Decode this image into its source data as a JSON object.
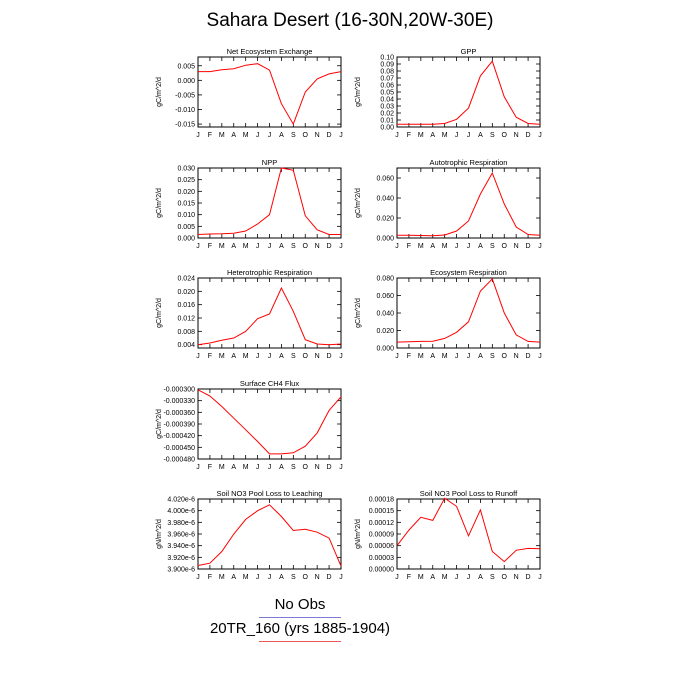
{
  "title": "Sahara Desert (16-30N,20W-30E)",
  "legend": {
    "obs_label": "No Obs",
    "obs_color": "#7b7bd4",
    "model_label": "20TR_160 (yrs 1885-1904)",
    "model_color": "#e85a5a"
  },
  "line_color": "#ff0000",
  "chart_data": [
    {
      "type": "line",
      "title": "Net Ecosystem Exchange",
      "ylabel": "gC/m^2/d",
      "categories": [
        "J",
        "F",
        "M",
        "A",
        "M",
        "J",
        "J",
        "A",
        "S",
        "O",
        "N",
        "D",
        "J"
      ],
      "ylim": [
        -0.016,
        0.008
      ],
      "yticks": [
        "0.005",
        "0.000",
        "-0.005",
        "-0.010",
        "-0.015"
      ],
      "ytick_values": [
        0.005,
        0.0,
        -0.005,
        -0.01,
        -0.015
      ],
      "values": [
        0.003,
        0.003,
        0.0036,
        0.004,
        0.0052,
        0.0057,
        0.0035,
        -0.008,
        -0.015,
        -0.004,
        0.0005,
        0.0022,
        0.003
      ]
    },
    {
      "type": "line",
      "title": "GPP",
      "ylabel": "gC/m^2/d",
      "categories": [
        "J",
        "F",
        "M",
        "A",
        "M",
        "J",
        "J",
        "A",
        "S",
        "O",
        "N",
        "D",
        "J"
      ],
      "ylim": [
        0.0,
        0.1
      ],
      "yticks": [
        "0.10",
        "0.09",
        "0.08",
        "0.07",
        "0.06",
        "0.05",
        "0.04",
        "0.03",
        "0.02",
        "0.01",
        "0.00"
      ],
      "ytick_values": [
        0.1,
        0.09,
        0.08,
        0.07,
        0.06,
        0.05,
        0.04,
        0.03,
        0.02,
        0.01,
        0.0
      ],
      "values": [
        0.004,
        0.004,
        0.0038,
        0.0038,
        0.005,
        0.011,
        0.027,
        0.073,
        0.094,
        0.043,
        0.014,
        0.005,
        0.004
      ]
    },
    {
      "type": "line",
      "title": "NPP",
      "ylabel": "gC/m^2/d",
      "categories": [
        "J",
        "F",
        "M",
        "A",
        "M",
        "J",
        "J",
        "A",
        "S",
        "O",
        "N",
        "D",
        "J"
      ],
      "ylim": [
        0.0,
        0.03
      ],
      "yticks": [
        "0.030",
        "0.025",
        "0.020",
        "0.015",
        "0.010",
        "0.005",
        "0.000"
      ],
      "ytick_values": [
        0.03,
        0.025,
        0.02,
        0.015,
        0.01,
        0.005,
        0.0
      ],
      "values": [
        0.0015,
        0.0017,
        0.0018,
        0.002,
        0.003,
        0.006,
        0.01,
        0.03,
        0.029,
        0.0095,
        0.0035,
        0.0015,
        0.0015
      ]
    },
    {
      "type": "line",
      "title": "Autotrophic Respiration",
      "ylabel": "gC/m^2/d",
      "categories": [
        "J",
        "F",
        "M",
        "A",
        "M",
        "J",
        "J",
        "A",
        "S",
        "O",
        "N",
        "D",
        "J"
      ],
      "ylim": [
        0.0,
        0.07
      ],
      "yticks": [
        "0.060",
        "0.040",
        "0.020",
        "0.000"
      ],
      "ytick_values": [
        0.06,
        0.04,
        0.02,
        0.0
      ],
      "values": [
        0.0028,
        0.0028,
        0.0025,
        0.0022,
        0.003,
        0.007,
        0.017,
        0.044,
        0.065,
        0.034,
        0.011,
        0.0035,
        0.0028
      ]
    },
    {
      "type": "line",
      "title": "Heterotrophic Respiration",
      "ylabel": "gC/m^2/d",
      "categories": [
        "J",
        "F",
        "M",
        "A",
        "M",
        "J",
        "J",
        "A",
        "S",
        "O",
        "N",
        "D",
        "J"
      ],
      "ylim": [
        0.003,
        0.024
      ],
      "yticks": [
        "0.024",
        "0.020",
        "0.016",
        "0.012",
        "0.008",
        "0.004"
      ],
      "ytick_values": [
        0.024,
        0.02,
        0.016,
        0.012,
        0.008,
        0.004
      ],
      "values": [
        0.004,
        0.0045,
        0.0053,
        0.006,
        0.008,
        0.0118,
        0.0132,
        0.021,
        0.014,
        0.0055,
        0.0042,
        0.004,
        0.0042
      ]
    },
    {
      "type": "line",
      "title": "Ecosystem Respiration",
      "ylabel": "gC/m^2/d",
      "categories": [
        "J",
        "F",
        "M",
        "A",
        "M",
        "J",
        "J",
        "A",
        "S",
        "O",
        "N",
        "D",
        "J"
      ],
      "ylim": [
        0.0,
        0.08
      ],
      "yticks": [
        "0.080",
        "0.060",
        "0.040",
        "0.020",
        "0.000"
      ],
      "ytick_values": [
        0.08,
        0.06,
        0.04,
        0.02,
        0.0
      ],
      "values": [
        0.0068,
        0.0072,
        0.0075,
        0.0078,
        0.011,
        0.018,
        0.03,
        0.065,
        0.079,
        0.04,
        0.015,
        0.0075,
        0.0068
      ]
    },
    {
      "type": "line",
      "title": "Surface CH4 Flux",
      "ylabel": "gC/m^2/d",
      "categories": [
        "J",
        "F",
        "M",
        "A",
        "M",
        "J",
        "J",
        "A",
        "S",
        "O",
        "N",
        "D",
        "J"
      ],
      "ylim": [
        -0.00048,
        -0.0003
      ],
      "yticks": [
        "-0.000300",
        "-0.000330",
        "-0.000360",
        "-0.000390",
        "-0.000420",
        "-0.000450",
        "-0.000480"
      ],
      "ytick_values": [
        -0.0003,
        -0.00033,
        -0.00036,
        -0.00039,
        -0.00042,
        -0.00045,
        -0.00048
      ],
      "values": [
        -0.000302,
        -0.000318,
        -0.000345,
        -0.000375,
        -0.000405,
        -0.000435,
        -0.000467,
        -0.000467,
        -0.000464,
        -0.000447,
        -0.000413,
        -0.000355,
        -0.00032
      ]
    },
    {
      "type": "line",
      "title": "Soil NO3 Pool Loss to Leaching",
      "ylabel": "gN/m^2/d",
      "categories": [
        "J",
        "F",
        "M",
        "A",
        "M",
        "J",
        "J",
        "A",
        "S",
        "O",
        "N",
        "D",
        "J"
      ],
      "ylim": [
        3.9e-06,
        4.02e-06
      ],
      "yticks": [
        "4.020e-6",
        "4.000e-6",
        "3.980e-6",
        "3.960e-6",
        "3.940e-6",
        "3.920e-6",
        "3.900e-6"
      ],
      "ytick_values": [
        4.02e-06,
        4e-06,
        3.98e-06,
        3.96e-06,
        3.94e-06,
        3.92e-06,
        3.9e-06
      ],
      "values": [
        3.906e-06,
        3.91e-06,
        3.93e-06,
        3.96e-06,
        3.985e-06,
        4e-06,
        4.01e-06,
        3.99e-06,
        3.966e-06,
        3.968e-06,
        3.963e-06,
        3.953e-06,
        3.905e-06
      ]
    },
    {
      "type": "line",
      "title": "Soil NO3 Pool Loss to Runoff",
      "ylabel": "gN/m^2/d",
      "categories": [
        "J",
        "F",
        "M",
        "A",
        "M",
        "J",
        "J",
        "A",
        "S",
        "O",
        "N",
        "D",
        "J"
      ],
      "ylim": [
        0.0,
        0.00018
      ],
      "yticks": [
        "0.00018",
        "0.00015",
        "0.00012",
        "0.00009",
        "0.00006",
        "0.00003",
        "0.00000"
      ],
      "ytick_values": [
        0.00018,
        0.00015,
        0.00012,
        9e-05,
        6e-05,
        3e-05,
        0.0
      ],
      "values": [
        6e-05,
        0.0001,
        0.000133,
        0.000125,
        0.000182,
        0.000161,
        8.5e-05,
        0.000152,
        4.5e-05,
        1.9e-05,
        4.8e-05,
        5.3e-05,
        5.2e-05
      ]
    }
  ]
}
